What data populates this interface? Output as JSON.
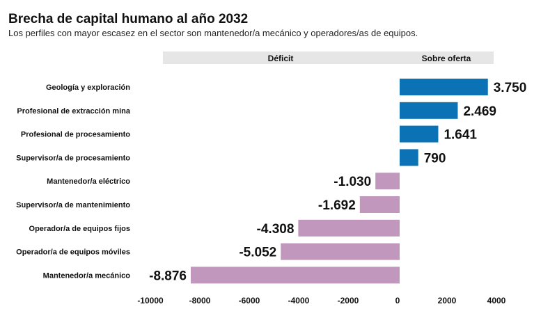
{
  "chart_data": {
    "type": "bar",
    "orientation": "horizontal",
    "title": "Brecha de capital humano al año 2032",
    "subtitle": "Los perfiles con mayor escasez en el sector son mantenedor/a mecánico y operadores/as de equipos.",
    "header_labels": {
      "negative": "Déficit",
      "positive": "Sobre oferta"
    },
    "categories": [
      "Geología y exploración",
      "Profesional de extracción mina",
      "Profesional de procesamiento",
      "Supervisor/a de procesamiento",
      "Mantenedor/a eléctrico",
      "Supervisor/a de mantenimiento",
      "Operador/a de equipos fijos",
      "Operador/a de equipos móviles",
      "Mantenedor/a mecánico"
    ],
    "values": [
      3750,
      2469,
      1641,
      790,
      -1030,
      -1692,
      -4308,
      -5052,
      -8876
    ],
    "value_labels": [
      "3.750",
      "2.469",
      "1.641",
      "790",
      "-1.030",
      "-1.692",
      "-4.308",
      "-5.052",
      "-8.876"
    ],
    "xticks": [
      -10000,
      -8000,
      -6000,
      -4000,
      -2000,
      0,
      2000,
      4000
    ],
    "xlim": [
      -10000,
      4000
    ],
    "colors": {
      "positive": "#0b72b5",
      "negative": "#c297bd"
    },
    "grid": false
  }
}
